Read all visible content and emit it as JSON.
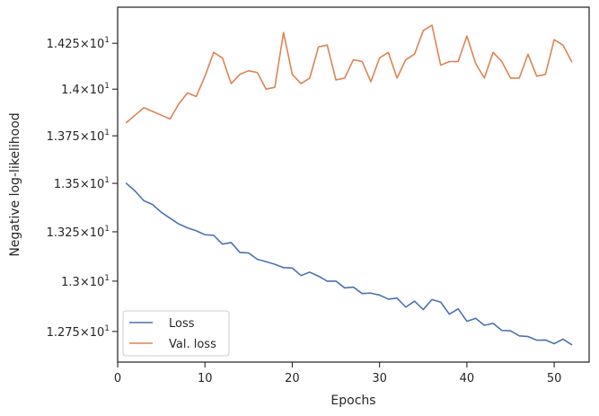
{
  "chart_data": {
    "type": "line",
    "title": "",
    "xlabel": "Epochs",
    "ylabel": "Negative log-likelihood",
    "x_scale": "linear",
    "y_scale": "log",
    "xlim": [
      0,
      54
    ],
    "ylim": [
      12.6,
      14.45
    ],
    "x_ticks": [
      0,
      10,
      20,
      30,
      40,
      50
    ],
    "x_tick_labels": [
      "0",
      "10",
      "20",
      "30",
      "40",
      "50"
    ],
    "y_ticks": [
      {
        "value": 12.75,
        "mantissa": "1.275",
        "exponent": "1"
      },
      {
        "value": 13.0,
        "mantissa": "1.3",
        "exponent": "1"
      },
      {
        "value": 13.25,
        "mantissa": "1.325",
        "exponent": "1"
      },
      {
        "value": 13.5,
        "mantissa": "1.35",
        "exponent": "1"
      },
      {
        "value": 13.75,
        "mantissa": "1.375",
        "exponent": "1"
      },
      {
        "value": 14.0,
        "mantissa": "1.4",
        "exponent": "1"
      },
      {
        "value": 14.25,
        "mantissa": "1.425",
        "exponent": "1"
      }
    ],
    "grid": false,
    "legend_position": "lower-left",
    "x": [
      1,
      2,
      3,
      4,
      5,
      6,
      7,
      8,
      9,
      10,
      11,
      12,
      13,
      14,
      15,
      16,
      17,
      18,
      19,
      20,
      21,
      22,
      23,
      24,
      25,
      26,
      27,
      28,
      29,
      30,
      31,
      32,
      33,
      34,
      35,
      36,
      37,
      38,
      39,
      40,
      41,
      42,
      43,
      44,
      45,
      46,
      47,
      48,
      49,
      50,
      51,
      52
    ],
    "series": [
      {
        "name": "Loss",
        "color": "#4c72b0",
        "values": [
          13.5,
          13.46,
          13.41,
          13.39,
          13.35,
          13.32,
          13.29,
          13.27,
          13.255,
          13.235,
          13.232,
          13.187,
          13.195,
          13.145,
          13.142,
          13.11,
          13.098,
          13.085,
          13.068,
          13.066,
          13.028,
          13.045,
          13.025,
          13.0,
          13.0,
          12.966,
          12.97,
          12.938,
          12.94,
          12.93,
          12.91,
          12.915,
          12.87,
          12.9,
          12.858,
          12.908,
          12.895,
          12.835,
          12.862,
          12.8,
          12.815,
          12.78,
          12.79,
          12.755,
          12.753,
          12.728,
          12.725,
          12.707,
          12.708,
          12.69,
          12.712,
          12.685
        ]
      },
      {
        "name": "Val. loss",
        "color": "#dd8452",
        "values": [
          13.82,
          13.86,
          13.9,
          13.88,
          13.86,
          13.84,
          13.92,
          13.98,
          13.96,
          14.07,
          14.2,
          14.17,
          14.03,
          14.08,
          14.1,
          14.09,
          14.0,
          14.01,
          14.31,
          14.08,
          14.03,
          14.06,
          14.23,
          14.24,
          14.05,
          14.06,
          14.16,
          14.15,
          14.04,
          14.17,
          14.2,
          14.06,
          14.16,
          14.19,
          14.32,
          14.35,
          14.13,
          14.15,
          14.15,
          14.29,
          14.14,
          14.06,
          14.2,
          14.15,
          14.06,
          14.06,
          14.19,
          14.07,
          14.08,
          14.27,
          14.24,
          14.15
        ]
      }
    ]
  }
}
